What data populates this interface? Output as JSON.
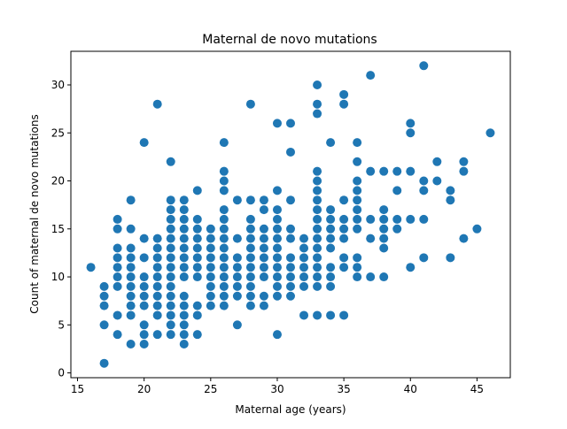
{
  "chart_data": {
    "type": "scatter",
    "title": "Maternal de novo mutations",
    "xlabel": "Maternal age (years)",
    "ylabel": "Count of maternal de novo mutations",
    "xlim": [
      14.5,
      47.5
    ],
    "ylim": [
      -0.5,
      33.5
    ],
    "xticks": [
      15,
      20,
      25,
      30,
      35,
      40,
      45
    ],
    "yticks": [
      0,
      5,
      10,
      15,
      20,
      25,
      30
    ],
    "grid": false,
    "marker_color": "#1f77b4",
    "points": [
      [
        16,
        11
      ],
      [
        17,
        1
      ],
      [
        17,
        5
      ],
      [
        17,
        7
      ],
      [
        17,
        8
      ],
      [
        17,
        9
      ],
      [
        18,
        4
      ],
      [
        18,
        6
      ],
      [
        18,
        9
      ],
      [
        18,
        10
      ],
      [
        18,
        11
      ],
      [
        18,
        12
      ],
      [
        18,
        13
      ],
      [
        18,
        15
      ],
      [
        18,
        16
      ],
      [
        19,
        3
      ],
      [
        19,
        6
      ],
      [
        19,
        7
      ],
      [
        19,
        8
      ],
      [
        19,
        9
      ],
      [
        19,
        10
      ],
      [
        19,
        11
      ],
      [
        19,
        12
      ],
      [
        19,
        13
      ],
      [
        19,
        15
      ],
      [
        19,
        18
      ],
      [
        20,
        3
      ],
      [
        20,
        4
      ],
      [
        20,
        5
      ],
      [
        20,
        7
      ],
      [
        20,
        8
      ],
      [
        20,
        9
      ],
      [
        20,
        10
      ],
      [
        20,
        12
      ],
      [
        20,
        14
      ],
      [
        20,
        24
      ],
      [
        21,
        4
      ],
      [
        21,
        6
      ],
      [
        21,
        7
      ],
      [
        21,
        8
      ],
      [
        21,
        9
      ],
      [
        21,
        10
      ],
      [
        21,
        11
      ],
      [
        21,
        12
      ],
      [
        21,
        13
      ],
      [
        21,
        14
      ],
      [
        21,
        28
      ],
      [
        22,
        4
      ],
      [
        22,
        5
      ],
      [
        22,
        6
      ],
      [
        22,
        7
      ],
      [
        22,
        8
      ],
      [
        22,
        9
      ],
      [
        22,
        10
      ],
      [
        22,
        11
      ],
      [
        22,
        12
      ],
      [
        22,
        13
      ],
      [
        22,
        14
      ],
      [
        22,
        15
      ],
      [
        22,
        16
      ],
      [
        22,
        17
      ],
      [
        22,
        18
      ],
      [
        22,
        22
      ],
      [
        23,
        3
      ],
      [
        23,
        4
      ],
      [
        23,
        5
      ],
      [
        23,
        6
      ],
      [
        23,
        7
      ],
      [
        23,
        8
      ],
      [
        23,
        10
      ],
      [
        23,
        11
      ],
      [
        23,
        12
      ],
      [
        23,
        13
      ],
      [
        23,
        14
      ],
      [
        23,
        15
      ],
      [
        23,
        16
      ],
      [
        23,
        17
      ],
      [
        23,
        18
      ],
      [
        24,
        4
      ],
      [
        24,
        6
      ],
      [
        24,
        7
      ],
      [
        24,
        10
      ],
      [
        24,
        11
      ],
      [
        24,
        12
      ],
      [
        24,
        13
      ],
      [
        24,
        14
      ],
      [
        24,
        15
      ],
      [
        24,
        16
      ],
      [
        24,
        19
      ],
      [
        25,
        7
      ],
      [
        25,
        8
      ],
      [
        25,
        9
      ],
      [
        25,
        10
      ],
      [
        25,
        11
      ],
      [
        25,
        12
      ],
      [
        25,
        13
      ],
      [
        25,
        14
      ],
      [
        25,
        15
      ],
      [
        26,
        7
      ],
      [
        26,
        8
      ],
      [
        26,
        9
      ],
      [
        26,
        10
      ],
      [
        26,
        11
      ],
      [
        26,
        12
      ],
      [
        26,
        13
      ],
      [
        26,
        14
      ],
      [
        26,
        15
      ],
      [
        26,
        16
      ],
      [
        26,
        17
      ],
      [
        26,
        19
      ],
      [
        26,
        20
      ],
      [
        26,
        21
      ],
      [
        26,
        24
      ],
      [
        27,
        5
      ],
      [
        27,
        8
      ],
      [
        27,
        9
      ],
      [
        27,
        10
      ],
      [
        27,
        11
      ],
      [
        27,
        12
      ],
      [
        27,
        14
      ],
      [
        27,
        18
      ],
      [
        28,
        7
      ],
      [
        28,
        8
      ],
      [
        28,
        9
      ],
      [
        28,
        10
      ],
      [
        28,
        11
      ],
      [
        28,
        12
      ],
      [
        28,
        13
      ],
      [
        28,
        14
      ],
      [
        28,
        15
      ],
      [
        28,
        16
      ],
      [
        28,
        18
      ],
      [
        28,
        28
      ],
      [
        29,
        7
      ],
      [
        29,
        8
      ],
      [
        29,
        10
      ],
      [
        29,
        11
      ],
      [
        29,
        12
      ],
      [
        29,
        13
      ],
      [
        29,
        14
      ],
      [
        29,
        15
      ],
      [
        29,
        17
      ],
      [
        29,
        18
      ],
      [
        30,
        4
      ],
      [
        30,
        8
      ],
      [
        30,
        9
      ],
      [
        30,
        10
      ],
      [
        30,
        11
      ],
      [
        30,
        12
      ],
      [
        30,
        13
      ],
      [
        30,
        14
      ],
      [
        30,
        15
      ],
      [
        30,
        16
      ],
      [
        30,
        17
      ],
      [
        30,
        19
      ],
      [
        30,
        26
      ],
      [
        31,
        8
      ],
      [
        31,
        9
      ],
      [
        31,
        10
      ],
      [
        31,
        11
      ],
      [
        31,
        12
      ],
      [
        31,
        14
      ],
      [
        31,
        15
      ],
      [
        31,
        18
      ],
      [
        31,
        23
      ],
      [
        31,
        26
      ],
      [
        32,
        6
      ],
      [
        32,
        9
      ],
      [
        32,
        10
      ],
      [
        32,
        11
      ],
      [
        32,
        12
      ],
      [
        32,
        13
      ],
      [
        32,
        14
      ],
      [
        33,
        6
      ],
      [
        33,
        9
      ],
      [
        33,
        10
      ],
      [
        33,
        11
      ],
      [
        33,
        12
      ],
      [
        33,
        13
      ],
      [
        33,
        14
      ],
      [
        33,
        15
      ],
      [
        33,
        16
      ],
      [
        33,
        17
      ],
      [
        33,
        18
      ],
      [
        33,
        19
      ],
      [
        33,
        20
      ],
      [
        33,
        21
      ],
      [
        33,
        27
      ],
      [
        33,
        28
      ],
      [
        33,
        30
      ],
      [
        34,
        6
      ],
      [
        34,
        9
      ],
      [
        34,
        10
      ],
      [
        34,
        11
      ],
      [
        34,
        13
      ],
      [
        34,
        14
      ],
      [
        34,
        15
      ],
      [
        34,
        16
      ],
      [
        34,
        17
      ],
      [
        34,
        24
      ],
      [
        35,
        6
      ],
      [
        35,
        11
      ],
      [
        35,
        12
      ],
      [
        35,
        14
      ],
      [
        35,
        15
      ],
      [
        35,
        16
      ],
      [
        35,
        18
      ],
      [
        35,
        28
      ],
      [
        35,
        29
      ],
      [
        36,
        10
      ],
      [
        36,
        11
      ],
      [
        36,
        12
      ],
      [
        36,
        15
      ],
      [
        36,
        16
      ],
      [
        36,
        17
      ],
      [
        36,
        18
      ],
      [
        36,
        19
      ],
      [
        36,
        20
      ],
      [
        36,
        22
      ],
      [
        36,
        24
      ],
      [
        37,
        10
      ],
      [
        37,
        14
      ],
      [
        37,
        16
      ],
      [
        37,
        21
      ],
      [
        37,
        31
      ],
      [
        38,
        10
      ],
      [
        38,
        13
      ],
      [
        38,
        14
      ],
      [
        38,
        15
      ],
      [
        38,
        16
      ],
      [
        38,
        17
      ],
      [
        38,
        21
      ],
      [
        39,
        15
      ],
      [
        39,
        16
      ],
      [
        39,
        19
      ],
      [
        39,
        21
      ],
      [
        40,
        11
      ],
      [
        40,
        16
      ],
      [
        40,
        21
      ],
      [
        40,
        25
      ],
      [
        40,
        26
      ],
      [
        41,
        12
      ],
      [
        41,
        16
      ],
      [
        41,
        19
      ],
      [
        41,
        20
      ],
      [
        41,
        32
      ],
      [
        42,
        20
      ],
      [
        42,
        22
      ],
      [
        43,
        12
      ],
      [
        43,
        18
      ],
      [
        43,
        19
      ],
      [
        44,
        14
      ],
      [
        44,
        21
      ],
      [
        44,
        22
      ],
      [
        45,
        15
      ],
      [
        46,
        25
      ]
    ]
  }
}
